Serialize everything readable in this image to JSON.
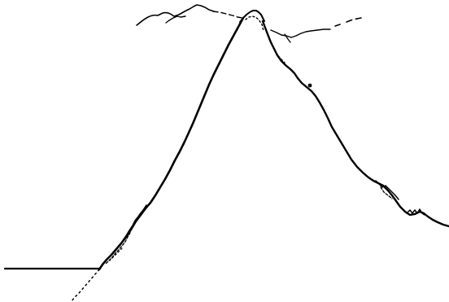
{
  "image": {
    "subject": "mountain-peak-line-drawing",
    "style": "black ink sketch on white",
    "colors": {
      "background": "#ffffff",
      "ink": "#000000"
    }
  }
}
